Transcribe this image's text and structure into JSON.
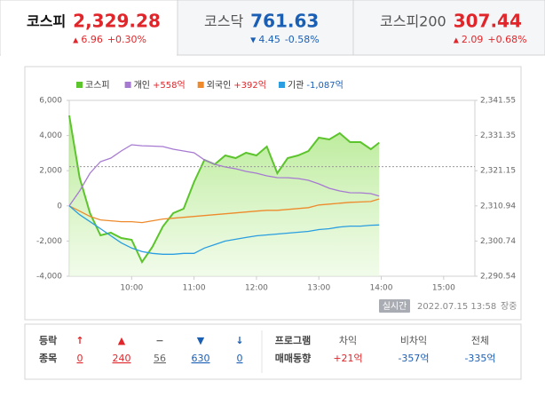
{
  "tabs": [
    {
      "name": "코스피",
      "value": "2,329.28",
      "arrow": "▲",
      "change": "6.96",
      "rate": "+0.30%",
      "color": "#e0262a",
      "active": true
    },
    {
      "name": "코스닥",
      "value": "761.63",
      "arrow": "▼",
      "change": "4.45",
      "rate": "-0.58%",
      "color": "#1b5fb4",
      "active": false
    },
    {
      "name": "코스피200",
      "value": "307.44",
      "arrow": "▲",
      "change": "2.09",
      "rate": "+0.68%",
      "color": "#e0262a",
      "active": false
    }
  ],
  "chart_data": {
    "type": "line",
    "x": [
      9,
      9.1667,
      9.3333,
      9.5,
      9.6667,
      9.8333,
      10,
      10.1667,
      10.3333,
      10.5,
      10.6667,
      10.8333,
      11,
      11.1667,
      11.3333,
      11.5,
      11.6667,
      11.8333,
      12,
      12.1667,
      12.3333,
      12.5,
      12.6667,
      12.8333,
      13,
      13.1667,
      13.3333,
      13.5,
      13.6667,
      13.8333,
      13.9667
    ],
    "xlim": [
      9,
      15.5
    ],
    "xticks": [
      {
        "value": 10,
        "label": "10:00"
      },
      {
        "value": 11,
        "label": "11:00"
      },
      {
        "value": 12,
        "label": "12:00"
      },
      {
        "value": 13,
        "label": "13:00"
      },
      {
        "value": 14,
        "label": "14:00"
      },
      {
        "value": 15,
        "label": "15:00"
      }
    ],
    "ylim": [
      -4000,
      6000
    ],
    "yticks": [
      {
        "value": -4000,
        "label": "-4,000"
      },
      {
        "value": -2000,
        "label": "-2,000"
      },
      0,
      {
        "value": 2000,
        "label": "2,000"
      },
      {
        "value": 4000,
        "label": "4,000"
      },
      {
        "value": 6000,
        "label": "6,000"
      }
    ],
    "y2lim": [
      2290.54,
      2341.55
    ],
    "y2ticks": [
      {
        "value": 2290.54,
        "label": "2,290.54"
      },
      {
        "value": 2300.74,
        "label": "2,300.74"
      },
      {
        "value": 2310.94,
        "label": "2,310.94"
      },
      {
        "value": 2321.15,
        "label": "2,321.15"
      },
      {
        "value": 2331.35,
        "label": "2,331.35"
      },
      {
        "value": 2341.55,
        "label": "2,341.55"
      }
    ],
    "grid": false,
    "reference_line": {
      "value": 2322.32,
      "axis": "y2"
    },
    "series": [
      {
        "name": "코스피",
        "color": "#5cc42c",
        "axis": "y2",
        "area": true,
        "values": [
          2337.17,
          2319.14,
          2308.84,
          2302.39,
          2303.17,
          2301.62,
          2301.11,
          2294.67,
          2299.05,
          2304.97,
          2308.84,
          2310.12,
          2317.85,
          2324.29,
          2323.0,
          2325.58,
          2324.81,
          2326.35,
          2325.58,
          2328.15,
          2320.43,
          2324.81,
          2325.58,
          2326.87,
          2330.73,
          2330.22,
          2332.02,
          2329.44,
          2329.44,
          2327.39,
          2329.28
        ]
      },
      {
        "name": "개인",
        "legend_value": "+558억",
        "legend_value_color": "#e0262a",
        "color": "#a77ad2",
        "axis": "y",
        "values": [
          0,
          848,
          1858,
          2515,
          2717,
          3121,
          3475,
          3420,
          3400,
          3374,
          3222,
          3121,
          3020,
          2616,
          2364,
          2212,
          2111,
          1960,
          1859,
          1707,
          1606,
          1600,
          1556,
          1455,
          1253,
          1000,
          848,
          747,
          740,
          697,
          558
        ]
      },
      {
        "name": "외국인",
        "legend_value": "+392억",
        "legend_value_color": "#e0262a",
        "color": "#ee8a2c",
        "axis": "y",
        "values": [
          0,
          -300,
          -600,
          -800,
          -850,
          -900,
          -900,
          -950,
          -850,
          -750,
          -700,
          -650,
          -600,
          -550,
          -500,
          -450,
          -400,
          -350,
          -300,
          -250,
          -250,
          -200,
          -150,
          -100,
          50,
          100,
          150,
          200,
          220,
          250,
          392
        ]
      },
      {
        "name": "기관",
        "legend_value": "-1,087억",
        "legend_value_color": "#1b5fb4",
        "color": "#2a9ee0",
        "axis": "y",
        "values": [
          0,
          -500,
          -900,
          -1300,
          -1700,
          -2100,
          -2400,
          -2600,
          -2700,
          -2750,
          -2750,
          -2700,
          -2700,
          -2400,
          -2200,
          -2000,
          -1900,
          -1800,
          -1700,
          -1650,
          -1600,
          -1550,
          -1500,
          -1450,
          -1350,
          -1300,
          -1200,
          -1150,
          -1150,
          -1100,
          -1087
        ]
      }
    ]
  },
  "status": {
    "badge": "실시간",
    "timestamp": "2022.07.15 13:58",
    "session": "장중"
  },
  "market_breadth": {
    "title_lines": [
      "등락",
      "종목"
    ],
    "items": [
      {
        "icon": "↑",
        "count": 0,
        "color": "#e0262a"
      },
      {
        "icon": "▲",
        "count": 240,
        "color": "#e0262a"
      },
      {
        "icon": "−",
        "count": 56,
        "color": "#666666"
      },
      {
        "icon": "▼",
        "count": 630,
        "color": "#1b5fb4"
      },
      {
        "icon": "↓",
        "count": 0,
        "color": "#1b5fb4"
      }
    ]
  },
  "program_trading": {
    "title_lines": [
      "프로그램",
      "매매동향"
    ],
    "items": [
      {
        "label": "차익",
        "value": "+21억",
        "color": "#e0262a"
      },
      {
        "label": "비차익",
        "value": "-357억",
        "color": "#1b5fb4"
      },
      {
        "label": "전체",
        "value": "-335억",
        "color": "#1b5fb4"
      }
    ]
  }
}
